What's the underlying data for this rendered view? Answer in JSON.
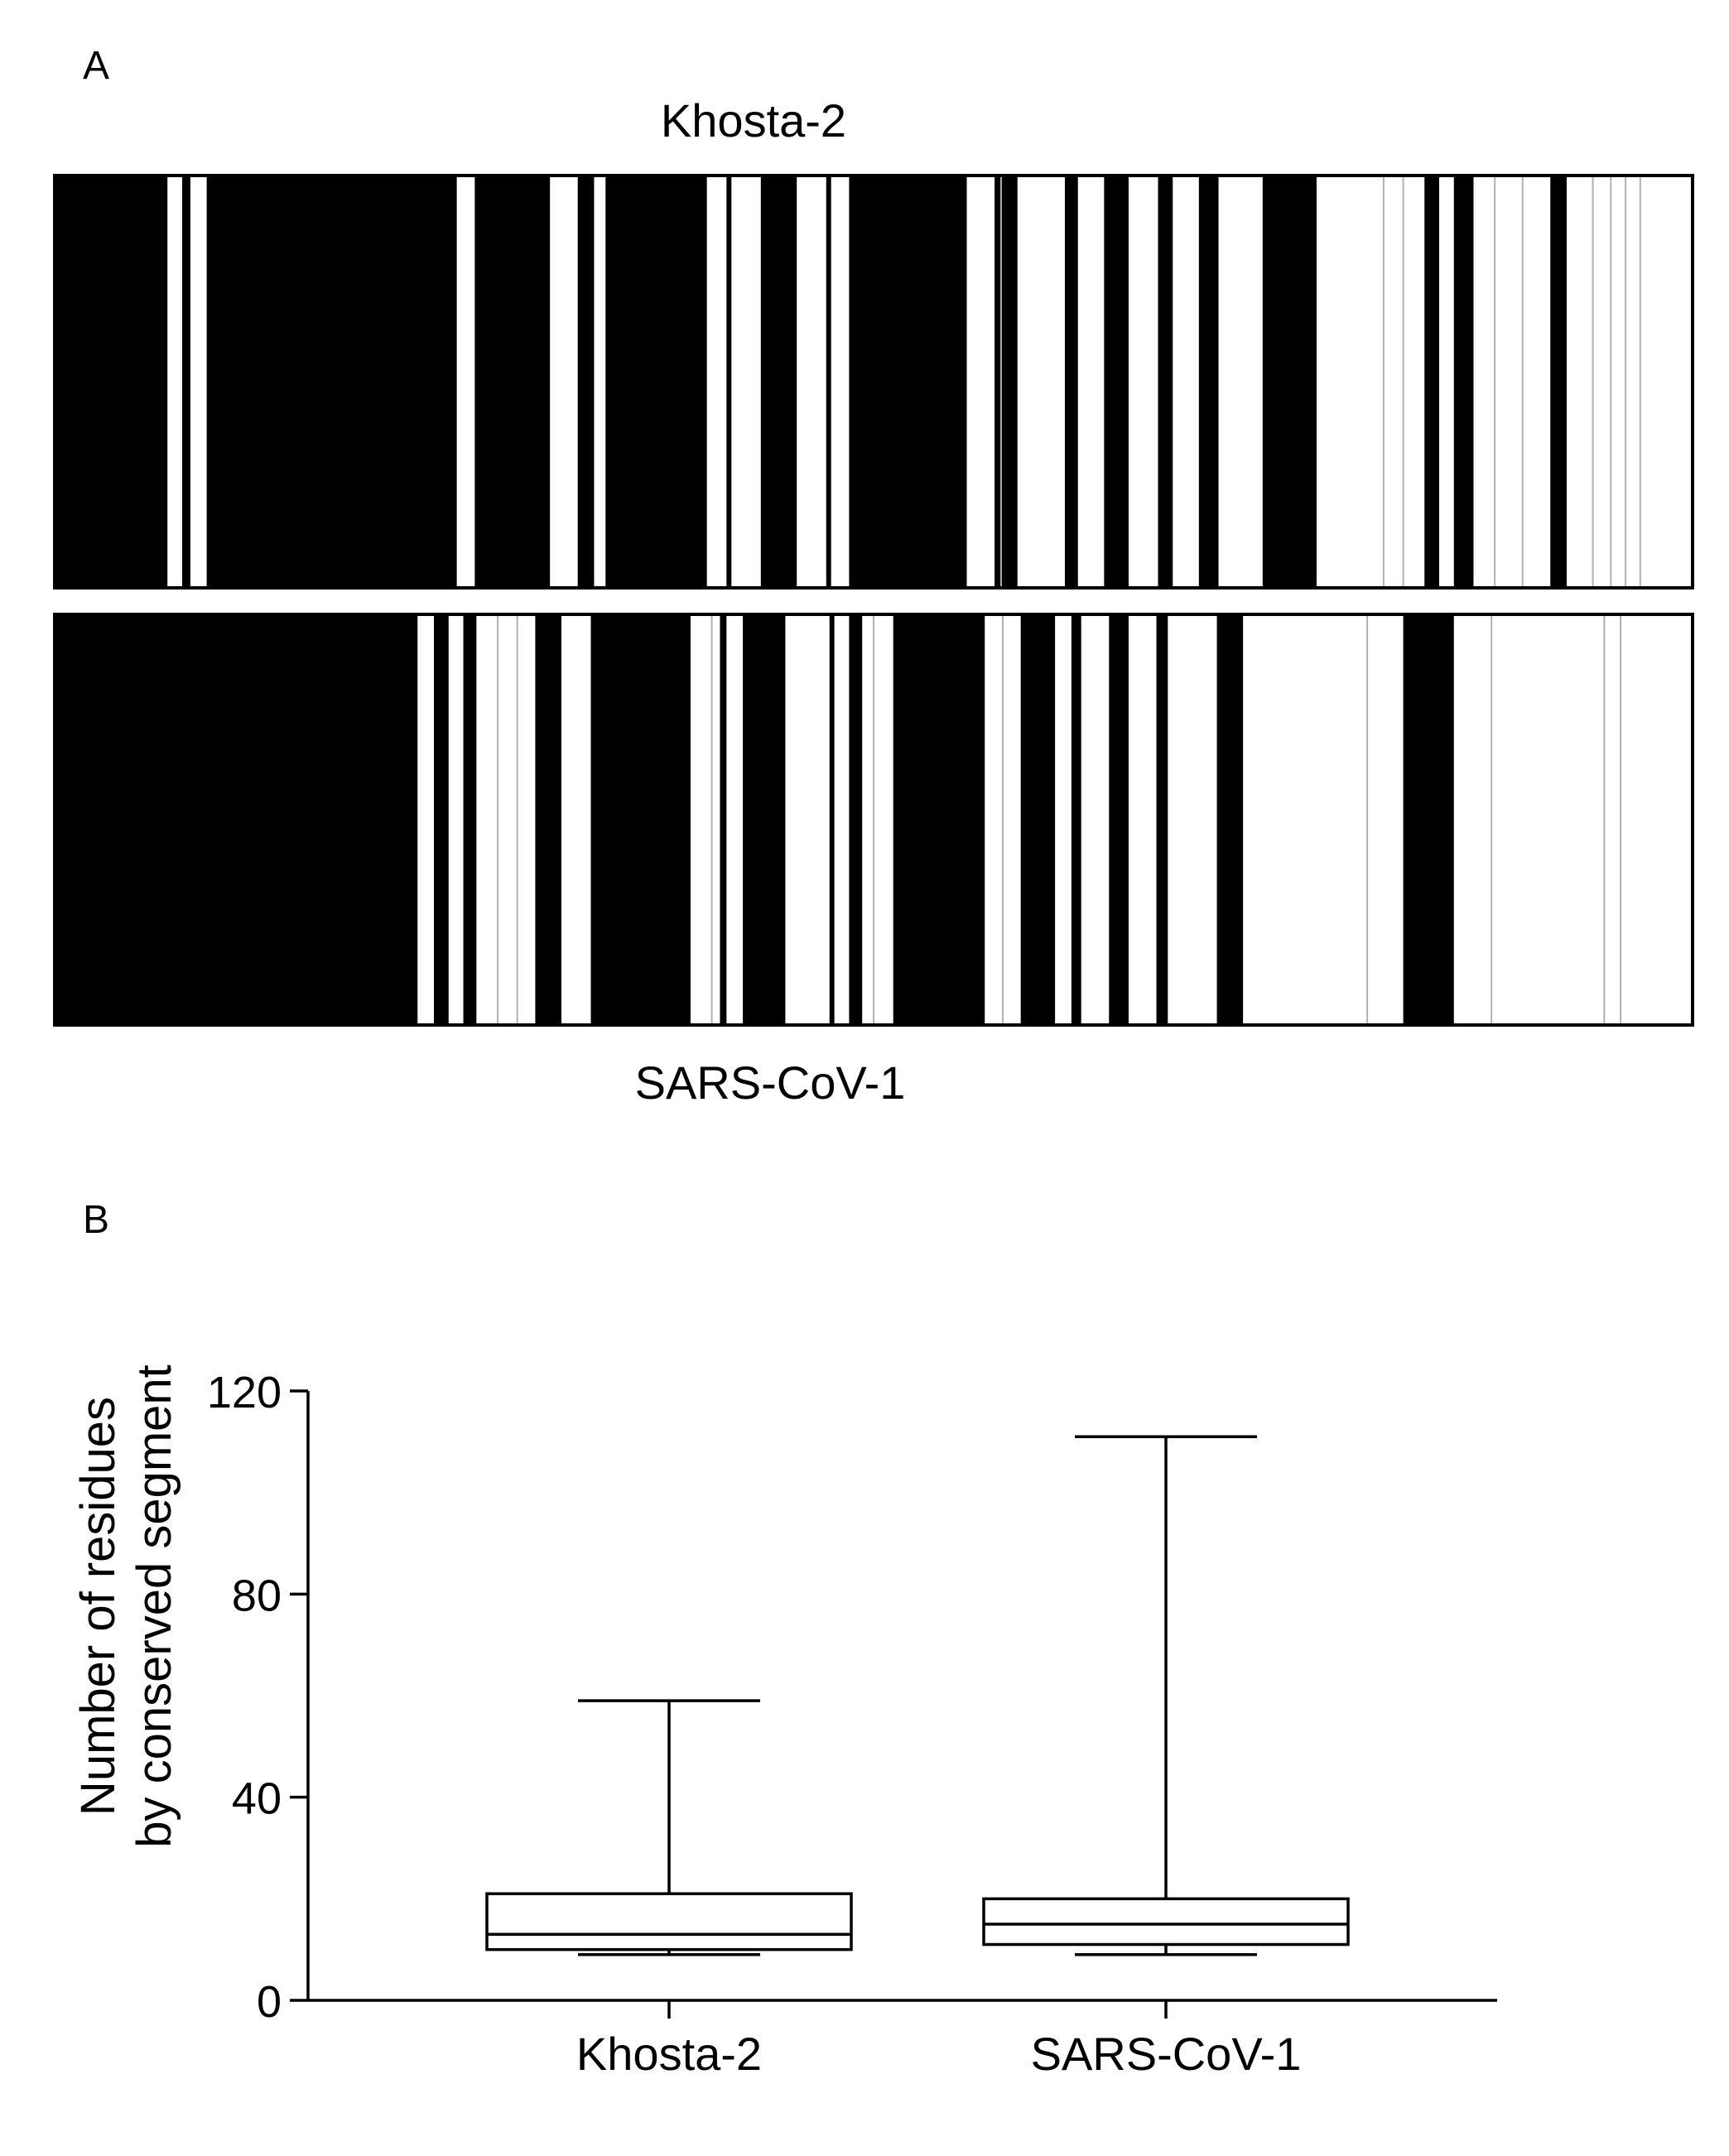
{
  "panels": {
    "a": {
      "letter": "A"
    },
    "b": {
      "letter": "B"
    }
  },
  "conservation_map": {
    "top_track": {
      "label": "Khosta-2",
      "fill_color": "#000000",
      "gap_color": "#ffffff",
      "thin_line_color": "#b0b0b0",
      "divergent_segments": [
        [
          6.8,
          7.7
        ],
        [
          8.2,
          9.2
        ],
        [
          24.5,
          25.6
        ],
        [
          30.2,
          31.9
        ],
        [
          32.9,
          33.6
        ],
        [
          39.8,
          41.0
        ],
        [
          41.3,
          43.1
        ],
        [
          45.3,
          47.1
        ],
        [
          47.4,
          48.5
        ],
        [
          55.7,
          57.4
        ],
        [
          58.8,
          61.7
        ],
        [
          62.5,
          64.1
        ],
        [
          65.6,
          67.4
        ],
        [
          68.3,
          69.9
        ],
        [
          71.1,
          73.8
        ],
        [
          77.1,
          83.7
        ],
        [
          84.6,
          85.5
        ],
        [
          86.7,
          91.4
        ],
        [
          92.4,
          100.0
        ]
      ],
      "thin_lines": [
        57.8,
        81.2,
        82.4,
        88.0,
        89.7,
        94.0,
        95.1,
        96.0,
        96.9
      ]
    },
    "bottom_track": {
      "label": "SARS-CoV-1",
      "fill_color": "#000000",
      "gap_color": "#ffffff",
      "thin_line_color": "#b0b0b0",
      "divergent_segments": [
        [
          22.1,
          23.1
        ],
        [
          24.0,
          24.9
        ],
        [
          25.7,
          29.3
        ],
        [
          30.9,
          32.7
        ],
        [
          38.8,
          40.6
        ],
        [
          41.0,
          42.0
        ],
        [
          44.6,
          47.3
        ],
        [
          47.6,
          48.5
        ],
        [
          49.3,
          51.2
        ],
        [
          56.8,
          59.0
        ],
        [
          61.1,
          62.1
        ],
        [
          62.7,
          64.4
        ],
        [
          65.6,
          67.3
        ],
        [
          68.0,
          71.0
        ],
        [
          72.6,
          82.4
        ],
        [
          85.5,
          100.0
        ]
      ],
      "thin_lines": [
        27.0,
        28.2,
        40.1,
        50.0,
        57.9,
        80.2,
        87.8,
        94.7,
        95.7
      ]
    }
  },
  "chart_data": {
    "type": "boxplot",
    "categories": [
      "Khosta-2",
      "SARS-CoV-1"
    ],
    "ylabel": [
      "Number of residues",
      "by conserved segment"
    ],
    "xlabel": "",
    "ylim": [
      0,
      120
    ],
    "yticks": [
      0,
      40,
      80,
      120
    ],
    "grid": false,
    "series": [
      {
        "category": "Khosta-2",
        "min": 9,
        "q1": 10,
        "median": 13,
        "q3": 21,
        "max": 59
      },
      {
        "category": "SARS-CoV-1",
        "min": 9,
        "q1": 11,
        "median": 15,
        "q3": 20,
        "max": 111
      }
    ]
  }
}
